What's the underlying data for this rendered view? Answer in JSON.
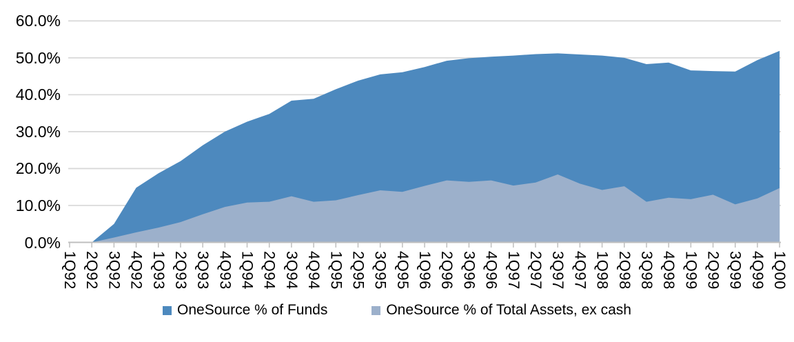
{
  "chart_data": {
    "type": "area",
    "title": "",
    "categories": [
      "1Q92",
      "2Q92",
      "3Q92",
      "4Q92",
      "1Q93",
      "2Q93",
      "3Q93",
      "4Q93",
      "1Q94",
      "2Q94",
      "3Q94",
      "4Q94",
      "1Q95",
      "2Q95",
      "3Q95",
      "4Q95",
      "1Q96",
      "2Q96",
      "3Q96",
      "4Q96",
      "1Q97",
      "2Q97",
      "3Q97",
      "4Q97",
      "1Q98",
      "2Q98",
      "3Q98",
      "4Q98",
      "1Q99",
      "2Q99",
      "3Q99",
      "4Q99",
      "1Q00"
    ],
    "series": [
      {
        "name": "OneSource % of Funds",
        "color": "#4d89be",
        "values": [
          0,
          0,
          5.0,
          14.8,
          18.7,
          22.0,
          26.3,
          30.0,
          32.7,
          34.8,
          38.4,
          38.9,
          41.5,
          43.8,
          45.5,
          46.1,
          47.5,
          49.2,
          49.9,
          50.3,
          50.6,
          51.0,
          51.2,
          50.9,
          50.6,
          50.0,
          48.3,
          48.7,
          46.6,
          46.4,
          46.3,
          49.4,
          51.9
        ]
      },
      {
        "name": "OneSource % of Total Assets, ex cash",
        "color": "#9cb0cb",
        "values": [
          0,
          0,
          1.3,
          2.7,
          4.0,
          5.5,
          7.6,
          9.6,
          10.8,
          11.0,
          12.5,
          11.0,
          11.4,
          12.8,
          14.1,
          13.7,
          15.3,
          16.8,
          16.4,
          16.8,
          15.4,
          16.2,
          18.4,
          15.9,
          14.2,
          15.2,
          11.0,
          12.1,
          11.7,
          12.9,
          10.3,
          11.9,
          14.7
        ]
      }
    ],
    "y_axis": {
      "tick_labels_top_to_bottom": [
        "60.0%",
        "50.0%",
        "40.0%",
        "30.0%",
        "20.0%",
        "10.0%",
        "0.0%"
      ],
      "min": 0,
      "max": 60,
      "step": 10,
      "format": "percent"
    },
    "x_axis": {
      "label_rotation": "vertical"
    },
    "grid": true,
    "legend_position": "bottom"
  },
  "colors": {
    "background": "#ffffff",
    "gridline": "#d9d9d9",
    "axis_line": "#bfbfbf",
    "text": "#000000",
    "series_dark": "#4d89be",
    "series_light": "#9cb0cb"
  }
}
